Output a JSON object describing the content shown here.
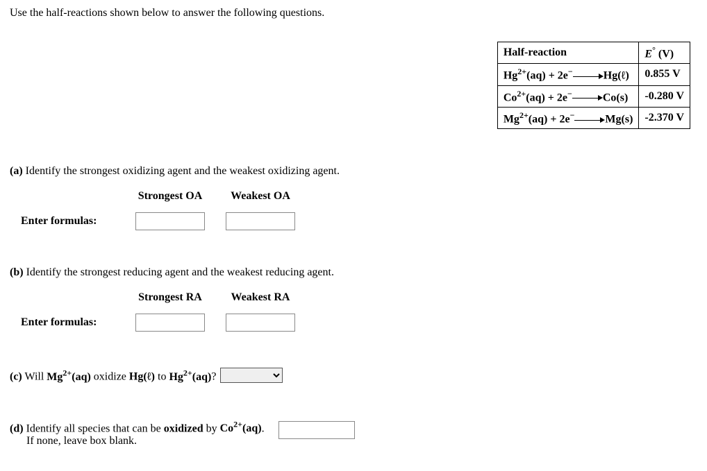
{
  "intro": "Use the half-reactions shown below to answer the following questions.",
  "table": {
    "header_reaction": "Half-reaction",
    "header_potential_prefix": "E",
    "header_potential_suffix": " (V)",
    "rows": [
      {
        "ion": "Hg",
        "charge": "2+",
        "reactant_state": "(aq)",
        "electrons": " + 2e",
        "e_charge": "−",
        "product": "Hg",
        "product_state": "(ℓ)",
        "potential": "0.855 V"
      },
      {
        "ion": "Co",
        "charge": "2+",
        "reactant_state": "(aq)",
        "electrons": " + 2e",
        "e_charge": "−",
        "product": "Co",
        "product_state": "(s)",
        "potential": "-0.280 V"
      },
      {
        "ion": "Mg",
        "charge": "2+",
        "reactant_state": "(aq)",
        "electrons": " + 2e",
        "e_charge": "−",
        "product": "Mg",
        "product_state": "(s)",
        "potential": "-2.370 V"
      }
    ]
  },
  "part_a": {
    "label": "(a)",
    "text": " Identify the strongest oxidizing agent and the weakest oxidizing agent.",
    "col1": "Strongest OA",
    "col2": "Weakest OA",
    "enter_label": "Enter formulas:",
    "val1": "",
    "val2": ""
  },
  "part_b": {
    "label": "(b)",
    "text": " Identify the strongest reducing agent and the weakest reducing agent.",
    "col1": "Strongest RA",
    "col2": "Weakest RA",
    "enter_label": "Enter formulas:",
    "val1": "",
    "val2": ""
  },
  "part_c": {
    "label": "(c)",
    "prefix": " Will ",
    "species1_el": "Mg",
    "species1_charge": "2+",
    "species1_state": "(aq)",
    "mid1": " oxidize ",
    "species2_el": "Hg",
    "species2_state": "(ℓ)",
    "mid2": " to ",
    "species3_el": "Hg",
    "species3_charge": "2+",
    "species3_state": "(aq)",
    "suffix": "?",
    "selected": ""
  },
  "part_d": {
    "label": "(d)",
    "text_prefix": " Identify all species that can be ",
    "text_bold": "oxidized",
    "text_mid": " by ",
    "species_el": "Co",
    "species_charge": "2+",
    "species_state": "(aq)",
    "text_suffix": ".",
    "subtext": "If none, leave box blank.",
    "val": ""
  }
}
